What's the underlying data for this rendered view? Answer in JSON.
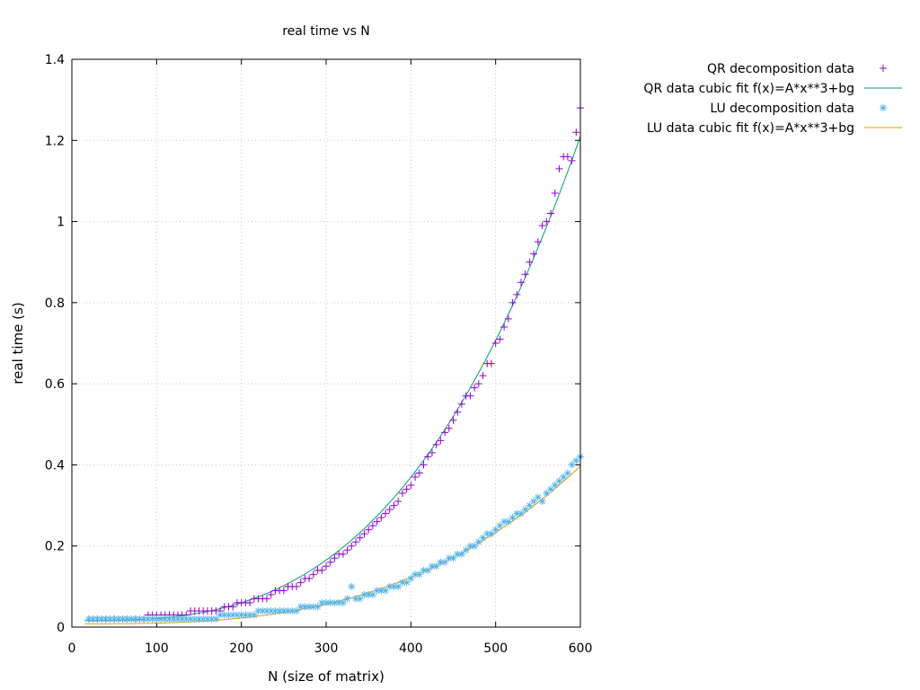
{
  "chart_data": {
    "type": "scatter",
    "title": "real time vs N",
    "xlabel": "N (size of matrix)",
    "ylabel": "real time (s)",
    "xlim": [
      0,
      600
    ],
    "ylim": [
      0,
      1.4
    ],
    "xticks": [
      0,
      100,
      200,
      300,
      400,
      500,
      600
    ],
    "yticks": [
      0,
      0.2,
      0.4,
      0.6,
      0.8,
      1,
      1.2,
      1.4
    ],
    "grid": true,
    "legend_position": "outside top-right",
    "series": [
      {
        "name": "QR decomposition data",
        "kind": "points",
        "marker": "plus",
        "color": "#9400d3",
        "x": [
          20,
          25,
          30,
          35,
          40,
          45,
          50,
          55,
          60,
          65,
          70,
          75,
          80,
          85,
          90,
          95,
          100,
          105,
          110,
          115,
          120,
          125,
          130,
          135,
          140,
          145,
          150,
          155,
          160,
          165,
          170,
          175,
          180,
          185,
          190,
          195,
          200,
          205,
          210,
          215,
          220,
          225,
          230,
          235,
          240,
          245,
          250,
          255,
          260,
          265,
          270,
          275,
          280,
          285,
          290,
          295,
          300,
          305,
          310,
          315,
          320,
          325,
          330,
          335,
          340,
          345,
          350,
          355,
          360,
          365,
          370,
          375,
          380,
          385,
          390,
          395,
          400,
          405,
          410,
          415,
          420,
          425,
          430,
          435,
          440,
          445,
          450,
          455,
          460,
          465,
          470,
          475,
          480,
          485,
          490,
          495,
          500,
          505,
          510,
          515,
          520,
          525,
          530,
          535,
          540,
          545,
          550,
          555,
          560,
          565,
          570,
          575,
          580,
          585,
          590,
          595,
          600
        ],
        "y": [
          0.02,
          0.02,
          0.02,
          0.02,
          0.02,
          0.02,
          0.02,
          0.02,
          0.02,
          0.02,
          0.02,
          0.02,
          0.02,
          0.02,
          0.03,
          0.03,
          0.03,
          0.03,
          0.03,
          0.03,
          0.03,
          0.03,
          0.03,
          0.03,
          0.04,
          0.04,
          0.04,
          0.04,
          0.04,
          0.04,
          0.04,
          0.04,
          0.05,
          0.05,
          0.05,
          0.06,
          0.06,
          0.06,
          0.06,
          0.07,
          0.07,
          0.07,
          0.07,
          0.08,
          0.09,
          0.09,
          0.09,
          0.1,
          0.1,
          0.1,
          0.11,
          0.12,
          0.12,
          0.13,
          0.14,
          0.14,
          0.15,
          0.16,
          0.17,
          0.18,
          0.18,
          0.19,
          0.2,
          0.21,
          0.22,
          0.23,
          0.24,
          0.25,
          0.26,
          0.27,
          0.28,
          0.29,
          0.3,
          0.31,
          0.33,
          0.34,
          0.35,
          0.37,
          0.38,
          0.4,
          0.42,
          0.43,
          0.45,
          0.46,
          0.48,
          0.49,
          0.51,
          0.53,
          0.55,
          0.57,
          0.57,
          0.59,
          0.6,
          0.62,
          0.65,
          0.65,
          0.7,
          0.71,
          0.74,
          0.76,
          0.8,
          0.82,
          0.85,
          0.87,
          0.9,
          0.92,
          0.95,
          0.99,
          1.0,
          1.02,
          1.07,
          1.13,
          1.16,
          1.16,
          1.15,
          1.22,
          1.28
        ]
      },
      {
        "name": "QR data cubic fit f(x)=A*x**3+bg",
        "kind": "fit",
        "color": "#009e73",
        "A": 5.53e-09,
        "bg": 0.0158
      },
      {
        "name": "LU decomposition data",
        "kind": "points",
        "marker": "star",
        "color": "#56b4e9",
        "x": [
          20,
          25,
          30,
          35,
          40,
          45,
          50,
          55,
          60,
          65,
          70,
          75,
          80,
          85,
          90,
          95,
          100,
          105,
          110,
          115,
          120,
          125,
          130,
          135,
          140,
          145,
          150,
          155,
          160,
          165,
          170,
          175,
          180,
          185,
          190,
          195,
          200,
          205,
          210,
          215,
          220,
          225,
          230,
          235,
          240,
          245,
          250,
          255,
          260,
          265,
          270,
          275,
          280,
          285,
          290,
          295,
          300,
          305,
          310,
          315,
          320,
          325,
          330,
          335,
          340,
          345,
          350,
          355,
          360,
          365,
          370,
          375,
          380,
          385,
          390,
          395,
          400,
          405,
          410,
          415,
          420,
          425,
          430,
          435,
          440,
          445,
          450,
          455,
          460,
          465,
          470,
          475,
          480,
          485,
          490,
          495,
          500,
          505,
          510,
          515,
          520,
          525,
          530,
          535,
          540,
          545,
          550,
          555,
          560,
          565,
          570,
          575,
          580,
          585,
          590,
          595,
          600
        ],
        "y": [
          0.02,
          0.02,
          0.02,
          0.02,
          0.02,
          0.02,
          0.02,
          0.02,
          0.02,
          0.02,
          0.02,
          0.02,
          0.02,
          0.02,
          0.02,
          0.02,
          0.02,
          0.02,
          0.02,
          0.02,
          0.02,
          0.02,
          0.02,
          0.02,
          0.02,
          0.02,
          0.02,
          0.02,
          0.02,
          0.02,
          0.02,
          0.03,
          0.03,
          0.03,
          0.03,
          0.03,
          0.03,
          0.03,
          0.03,
          0.03,
          0.04,
          0.04,
          0.04,
          0.04,
          0.04,
          0.04,
          0.04,
          0.04,
          0.04,
          0.04,
          0.05,
          0.05,
          0.05,
          0.05,
          0.05,
          0.06,
          0.06,
          0.06,
          0.06,
          0.06,
          0.06,
          0.07,
          0.1,
          0.07,
          0.07,
          0.08,
          0.08,
          0.08,
          0.09,
          0.09,
          0.09,
          0.1,
          0.1,
          0.1,
          0.11,
          0.11,
          0.12,
          0.13,
          0.13,
          0.14,
          0.14,
          0.15,
          0.15,
          0.16,
          0.16,
          0.17,
          0.17,
          0.18,
          0.18,
          0.19,
          0.2,
          0.2,
          0.21,
          0.22,
          0.23,
          0.23,
          0.24,
          0.25,
          0.26,
          0.26,
          0.27,
          0.28,
          0.28,
          0.29,
          0.3,
          0.31,
          0.32,
          0.31,
          0.33,
          0.34,
          0.35,
          0.36,
          0.37,
          0.38,
          0.4,
          0.41,
          0.42
        ]
      },
      {
        "name": "LU data cubic fit f(x)=A*x**3+bg",
        "kind": "fit",
        "color": "#e69f00",
        "A": 1.8e-09,
        "bg": 0.008
      }
    ]
  }
}
